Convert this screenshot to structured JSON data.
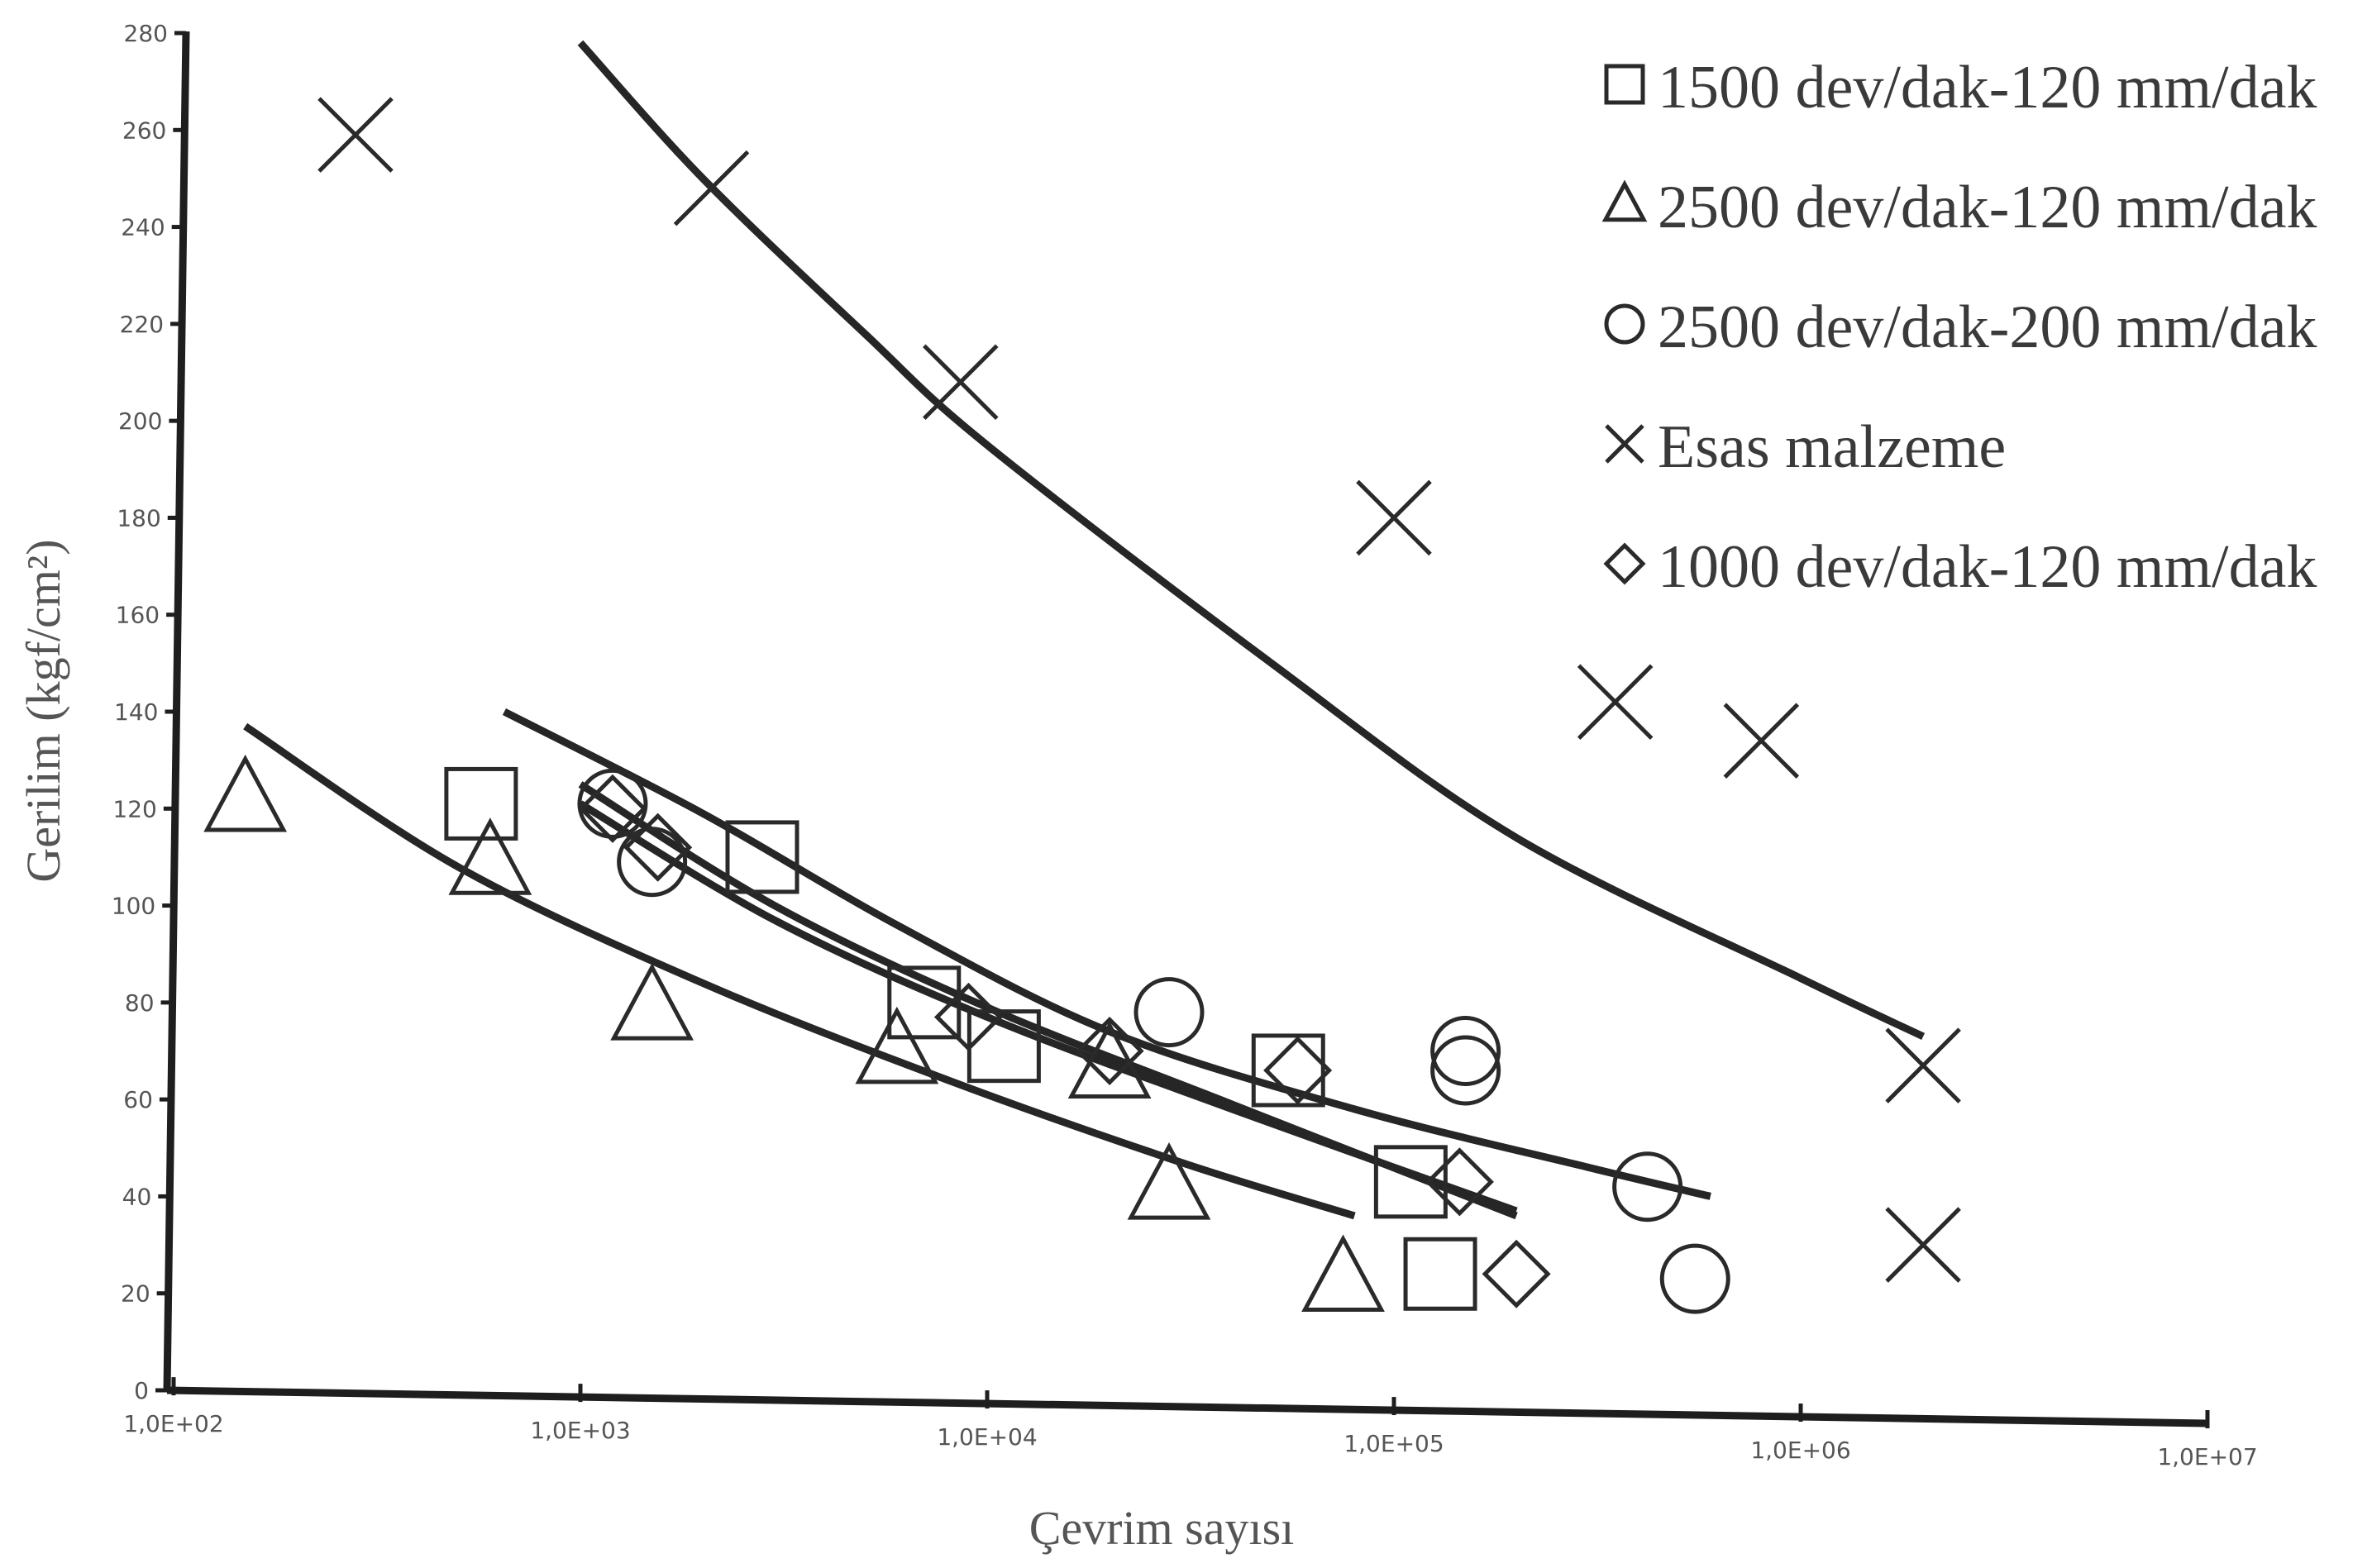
{
  "chart_data": {
    "type": "scatter",
    "xlabel": "Çevrim sayısı",
    "ylabel": "Gerilim (kgf/cm²)",
    "x_scale": "log",
    "xlim": [
      100,
      10000000
    ],
    "ylim": [
      0,
      280
    ],
    "x_ticks": [
      100,
      1000,
      10000,
      100000,
      1000000,
      10000000
    ],
    "x_tick_labels": [
      "1,0E+02",
      "1,0E+03",
      "1,0E+04",
      "1,0E+05",
      "1,0E+06",
      "1,0E+07"
    ],
    "y_ticks": [
      0,
      20,
      40,
      60,
      80,
      100,
      120,
      140,
      160,
      180,
      200,
      220,
      240,
      260,
      280
    ],
    "y_tick_labels": [
      "0",
      "20",
      "40",
      "60",
      "80",
      "100",
      "120",
      "140",
      "160",
      "180",
      "200",
      "220",
      "240",
      "260",
      "280"
    ],
    "legend_position": "top-right",
    "grid": false,
    "series": [
      {
        "name": "1500 dev/dak-120 mm/dak",
        "marker": "square",
        "points": [
          [
            570,
            121
          ],
          [
            2800,
            110
          ],
          [
            7000,
            80
          ],
          [
            11000,
            71
          ],
          [
            55000,
            66
          ],
          [
            110000,
            43
          ],
          [
            130000,
            24
          ]
        ],
        "trend": [
          [
            650,
            140
          ],
          [
            2000,
            119
          ],
          [
            6000,
            96
          ],
          [
            20000,
            74
          ],
          [
            80000,
            58
          ],
          [
            300000,
            46
          ],
          [
            600000,
            40
          ]
        ]
      },
      {
        "name": "2500 dev/dak-120 mm/dak",
        "marker": "triangle",
        "points": [
          [
            150,
            122
          ],
          [
            600,
            109
          ],
          [
            1500,
            79
          ],
          [
            6000,
            70
          ],
          [
            20000,
            67
          ],
          [
            28000,
            42
          ],
          [
            75000,
            23
          ]
        ],
        "trend": [
          [
            150,
            137
          ],
          [
            500,
            108
          ],
          [
            2000,
            84
          ],
          [
            8000,
            64
          ],
          [
            30000,
            47
          ],
          [
            80000,
            36
          ]
        ]
      },
      {
        "name": "2500 dev/dak-200 mm/dak",
        "marker": "circle",
        "points": [
          [
            1200,
            121
          ],
          [
            1500,
            109
          ],
          [
            28000,
            78
          ],
          [
            150000,
            70
          ],
          [
            150000,
            66
          ],
          [
            420000,
            42
          ],
          [
            550000,
            23
          ]
        ],
        "trend": [
          [
            1000,
            121
          ],
          [
            3000,
            97
          ],
          [
            10000,
            77
          ],
          [
            40000,
            58
          ],
          [
            200000,
            37
          ]
        ]
      },
      {
        "name": "Esas malzeme",
        "marker": "x",
        "points": [
          [
            280,
            259
          ],
          [
            2100,
            248
          ],
          [
            8600,
            208
          ],
          [
            100000,
            180
          ],
          [
            350000,
            142
          ],
          [
            800000,
            134
          ],
          [
            2000000,
            67
          ],
          [
            2000000,
            30
          ]
        ],
        "trend": [
          [
            1000,
            278
          ],
          [
            2000,
            250
          ],
          [
            5000,
            218
          ],
          [
            10000,
            195
          ],
          [
            50000,
            150
          ],
          [
            200000,
            114
          ],
          [
            1000000,
            85
          ],
          [
            2000000,
            73
          ]
        ]
      },
      {
        "name": "1000 dev/dak-120 mm/dak",
        "marker": "diamond",
        "points": [
          [
            1200,
            120
          ],
          [
            1550,
            112
          ],
          [
            9000,
            77
          ],
          [
            20000,
            70
          ],
          [
            58000,
            66
          ],
          [
            145000,
            43
          ],
          [
            200000,
            24
          ]
        ],
        "trend": [
          [
            1000,
            125
          ],
          [
            3000,
            100
          ],
          [
            10000,
            79
          ],
          [
            40000,
            59
          ],
          [
            200000,
            36
          ]
        ]
      }
    ]
  }
}
